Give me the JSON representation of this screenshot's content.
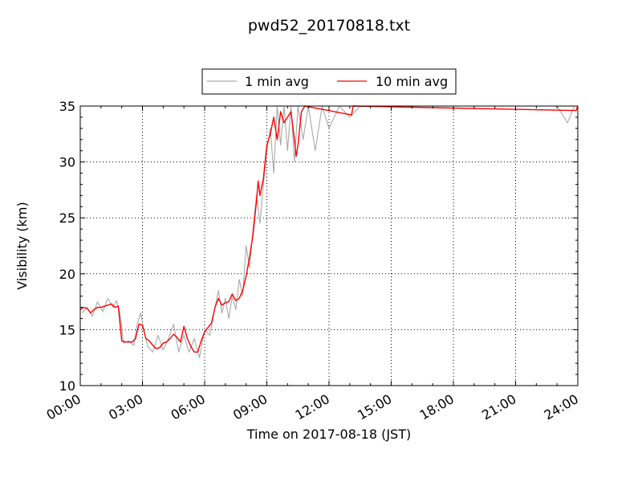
{
  "chart_data": {
    "type": "line",
    "title": "pwd52_20170818.txt",
    "xlabel": "Time on 2017-08-18 (JST)",
    "ylabel": "Visibility (km)",
    "xlim": [
      "00:00",
      "24:00"
    ],
    "ylim": [
      10,
      35
    ],
    "xticks": [
      "00:00",
      "03:00",
      "06:00",
      "09:00",
      "12:00",
      "15:00",
      "18:00",
      "21:00",
      "24:00"
    ],
    "yticks": [
      10,
      15,
      20,
      25,
      30,
      35
    ],
    "grid": true,
    "legend_position": "top-center",
    "series": [
      {
        "name": "1 min avg",
        "color": "#a9a9a9",
        "points": [
          [
            "00:05",
            16.5
          ],
          [
            "00:20",
            17.0
          ],
          [
            "00:35",
            16.2
          ],
          [
            "00:50",
            17.5
          ],
          [
            "01:05",
            16.6
          ],
          [
            "01:20",
            17.8
          ],
          [
            "01:35",
            17.0
          ],
          [
            "01:45",
            17.6
          ],
          [
            "01:55",
            16.5
          ],
          [
            "02:05",
            13.8
          ],
          [
            "02:20",
            14.0
          ],
          [
            "02:35",
            13.6
          ],
          [
            "02:45",
            15.5
          ],
          [
            "02:55",
            16.5
          ],
          [
            "03:05",
            14.8
          ],
          [
            "03:15",
            13.5
          ],
          [
            "03:30",
            13.0
          ],
          [
            "03:45",
            14.5
          ],
          [
            "04:00",
            13.2
          ],
          [
            "04:15",
            14.2
          ],
          [
            "04:30",
            15.5
          ],
          [
            "04:45",
            13.0
          ],
          [
            "05:00",
            14.5
          ],
          [
            "05:15",
            13.0
          ],
          [
            "05:30",
            14.2
          ],
          [
            "05:45",
            12.5
          ],
          [
            "06:00",
            15.0
          ],
          [
            "06:15",
            14.5
          ],
          [
            "06:30",
            17.0
          ],
          [
            "06:40",
            18.5
          ],
          [
            "06:50",
            16.5
          ],
          [
            "07:00",
            17.8
          ],
          [
            "07:10",
            16.0
          ],
          [
            "07:20",
            18.0
          ],
          [
            "07:30",
            16.8
          ],
          [
            "07:40",
            19.5
          ],
          [
            "07:50",
            18.0
          ],
          [
            "08:00",
            22.5
          ],
          [
            "08:10",
            20.5
          ],
          [
            "08:20",
            24.0
          ],
          [
            "08:30",
            27.0
          ],
          [
            "08:40",
            24.5
          ],
          [
            "08:50",
            28.0
          ],
          [
            "09:00",
            31.0
          ],
          [
            "09:10",
            33.0
          ],
          [
            "09:20",
            29.0
          ],
          [
            "09:30",
            35.0
          ],
          [
            "09:40",
            31.5
          ],
          [
            "09:50",
            35.0
          ],
          [
            "10:00",
            31.0
          ],
          [
            "10:10",
            35.0
          ],
          [
            "10:20",
            30.0
          ],
          [
            "10:30",
            35.0
          ],
          [
            "10:45",
            32.0
          ],
          [
            "11:00",
            35.0
          ],
          [
            "11:20",
            31.0
          ],
          [
            "11:40",
            35.0
          ],
          [
            "12:00",
            33.0
          ],
          [
            "12:30",
            35.0
          ],
          [
            "13:00",
            34.0
          ],
          [
            "13:30",
            35.0
          ],
          [
            "14:00",
            35.0
          ],
          [
            "15:00",
            35.0
          ],
          [
            "18:00",
            35.0
          ],
          [
            "20:00",
            35.0
          ],
          [
            "21:00",
            35.0
          ],
          [
            "22:00",
            35.0
          ],
          [
            "23:00",
            35.0
          ],
          [
            "23:30",
            33.5
          ],
          [
            "23:50",
            35.0
          ],
          [
            "24:00",
            35.0
          ]
        ]
      },
      {
        "name": "10 min avg",
        "color": "#ff0000",
        "points": [
          [
            "00:00",
            16.8
          ],
          [
            "00:10",
            17.0
          ],
          [
            "00:20",
            16.9
          ],
          [
            "00:30",
            16.5
          ],
          [
            "00:40",
            16.8
          ],
          [
            "00:50",
            17.0
          ],
          [
            "01:00",
            17.0
          ],
          [
            "01:10",
            17.1
          ],
          [
            "01:20",
            17.2
          ],
          [
            "01:30",
            17.3
          ],
          [
            "01:40",
            17.0
          ],
          [
            "01:50",
            17.1
          ],
          [
            "02:00",
            14.0
          ],
          [
            "02:10",
            13.9
          ],
          [
            "02:20",
            13.9
          ],
          [
            "02:30",
            13.9
          ],
          [
            "02:40",
            14.2
          ],
          [
            "02:50",
            15.5
          ],
          [
            "03:00",
            15.4
          ],
          [
            "03:10",
            14.2
          ],
          [
            "03:20",
            14.0
          ],
          [
            "03:30",
            13.6
          ],
          [
            "03:40",
            13.3
          ],
          [
            "03:50",
            13.4
          ],
          [
            "04:00",
            13.8
          ],
          [
            "04:10",
            13.9
          ],
          [
            "04:20",
            14.2
          ],
          [
            "04:30",
            14.6
          ],
          [
            "04:40",
            14.3
          ],
          [
            "04:50",
            13.9
          ],
          [
            "05:00",
            15.3
          ],
          [
            "05:10",
            14.2
          ],
          [
            "05:20",
            13.5
          ],
          [
            "05:30",
            13.0
          ],
          [
            "05:40",
            13.0
          ],
          [
            "05:50",
            14.0
          ],
          [
            "06:00",
            14.8
          ],
          [
            "06:10",
            15.2
          ],
          [
            "06:20",
            15.6
          ],
          [
            "06:30",
            17.0
          ],
          [
            "06:40",
            17.8
          ],
          [
            "06:50",
            17.2
          ],
          [
            "07:00",
            17.4
          ],
          [
            "07:10",
            17.5
          ],
          [
            "07:20",
            18.2
          ],
          [
            "07:30",
            17.6
          ],
          [
            "07:40",
            17.8
          ],
          [
            "07:50",
            18.5
          ],
          [
            "08:00",
            19.8
          ],
          [
            "08:10",
            21.5
          ],
          [
            "08:20",
            23.5
          ],
          [
            "08:30",
            26.5
          ],
          [
            "08:35",
            28.3
          ],
          [
            "08:40",
            27.0
          ],
          [
            "08:50",
            28.5
          ],
          [
            "09:00",
            31.5
          ],
          [
            "09:10",
            32.5
          ],
          [
            "09:20",
            34.0
          ],
          [
            "09:30",
            32.0
          ],
          [
            "09:40",
            34.5
          ],
          [
            "09:50",
            33.5
          ],
          [
            "10:00",
            34.0
          ],
          [
            "10:10",
            34.5
          ],
          [
            "10:20",
            32.0
          ],
          [
            "10:25",
            30.5
          ],
          [
            "10:30",
            31.5
          ],
          [
            "10:40",
            34.5
          ],
          [
            "10:50",
            35.0
          ],
          [
            "13:05",
            34.2
          ],
          [
            "13:10",
            35.0
          ],
          [
            "23:55",
            34.6
          ],
          [
            "24:00",
            35.0
          ]
        ]
      }
    ]
  }
}
